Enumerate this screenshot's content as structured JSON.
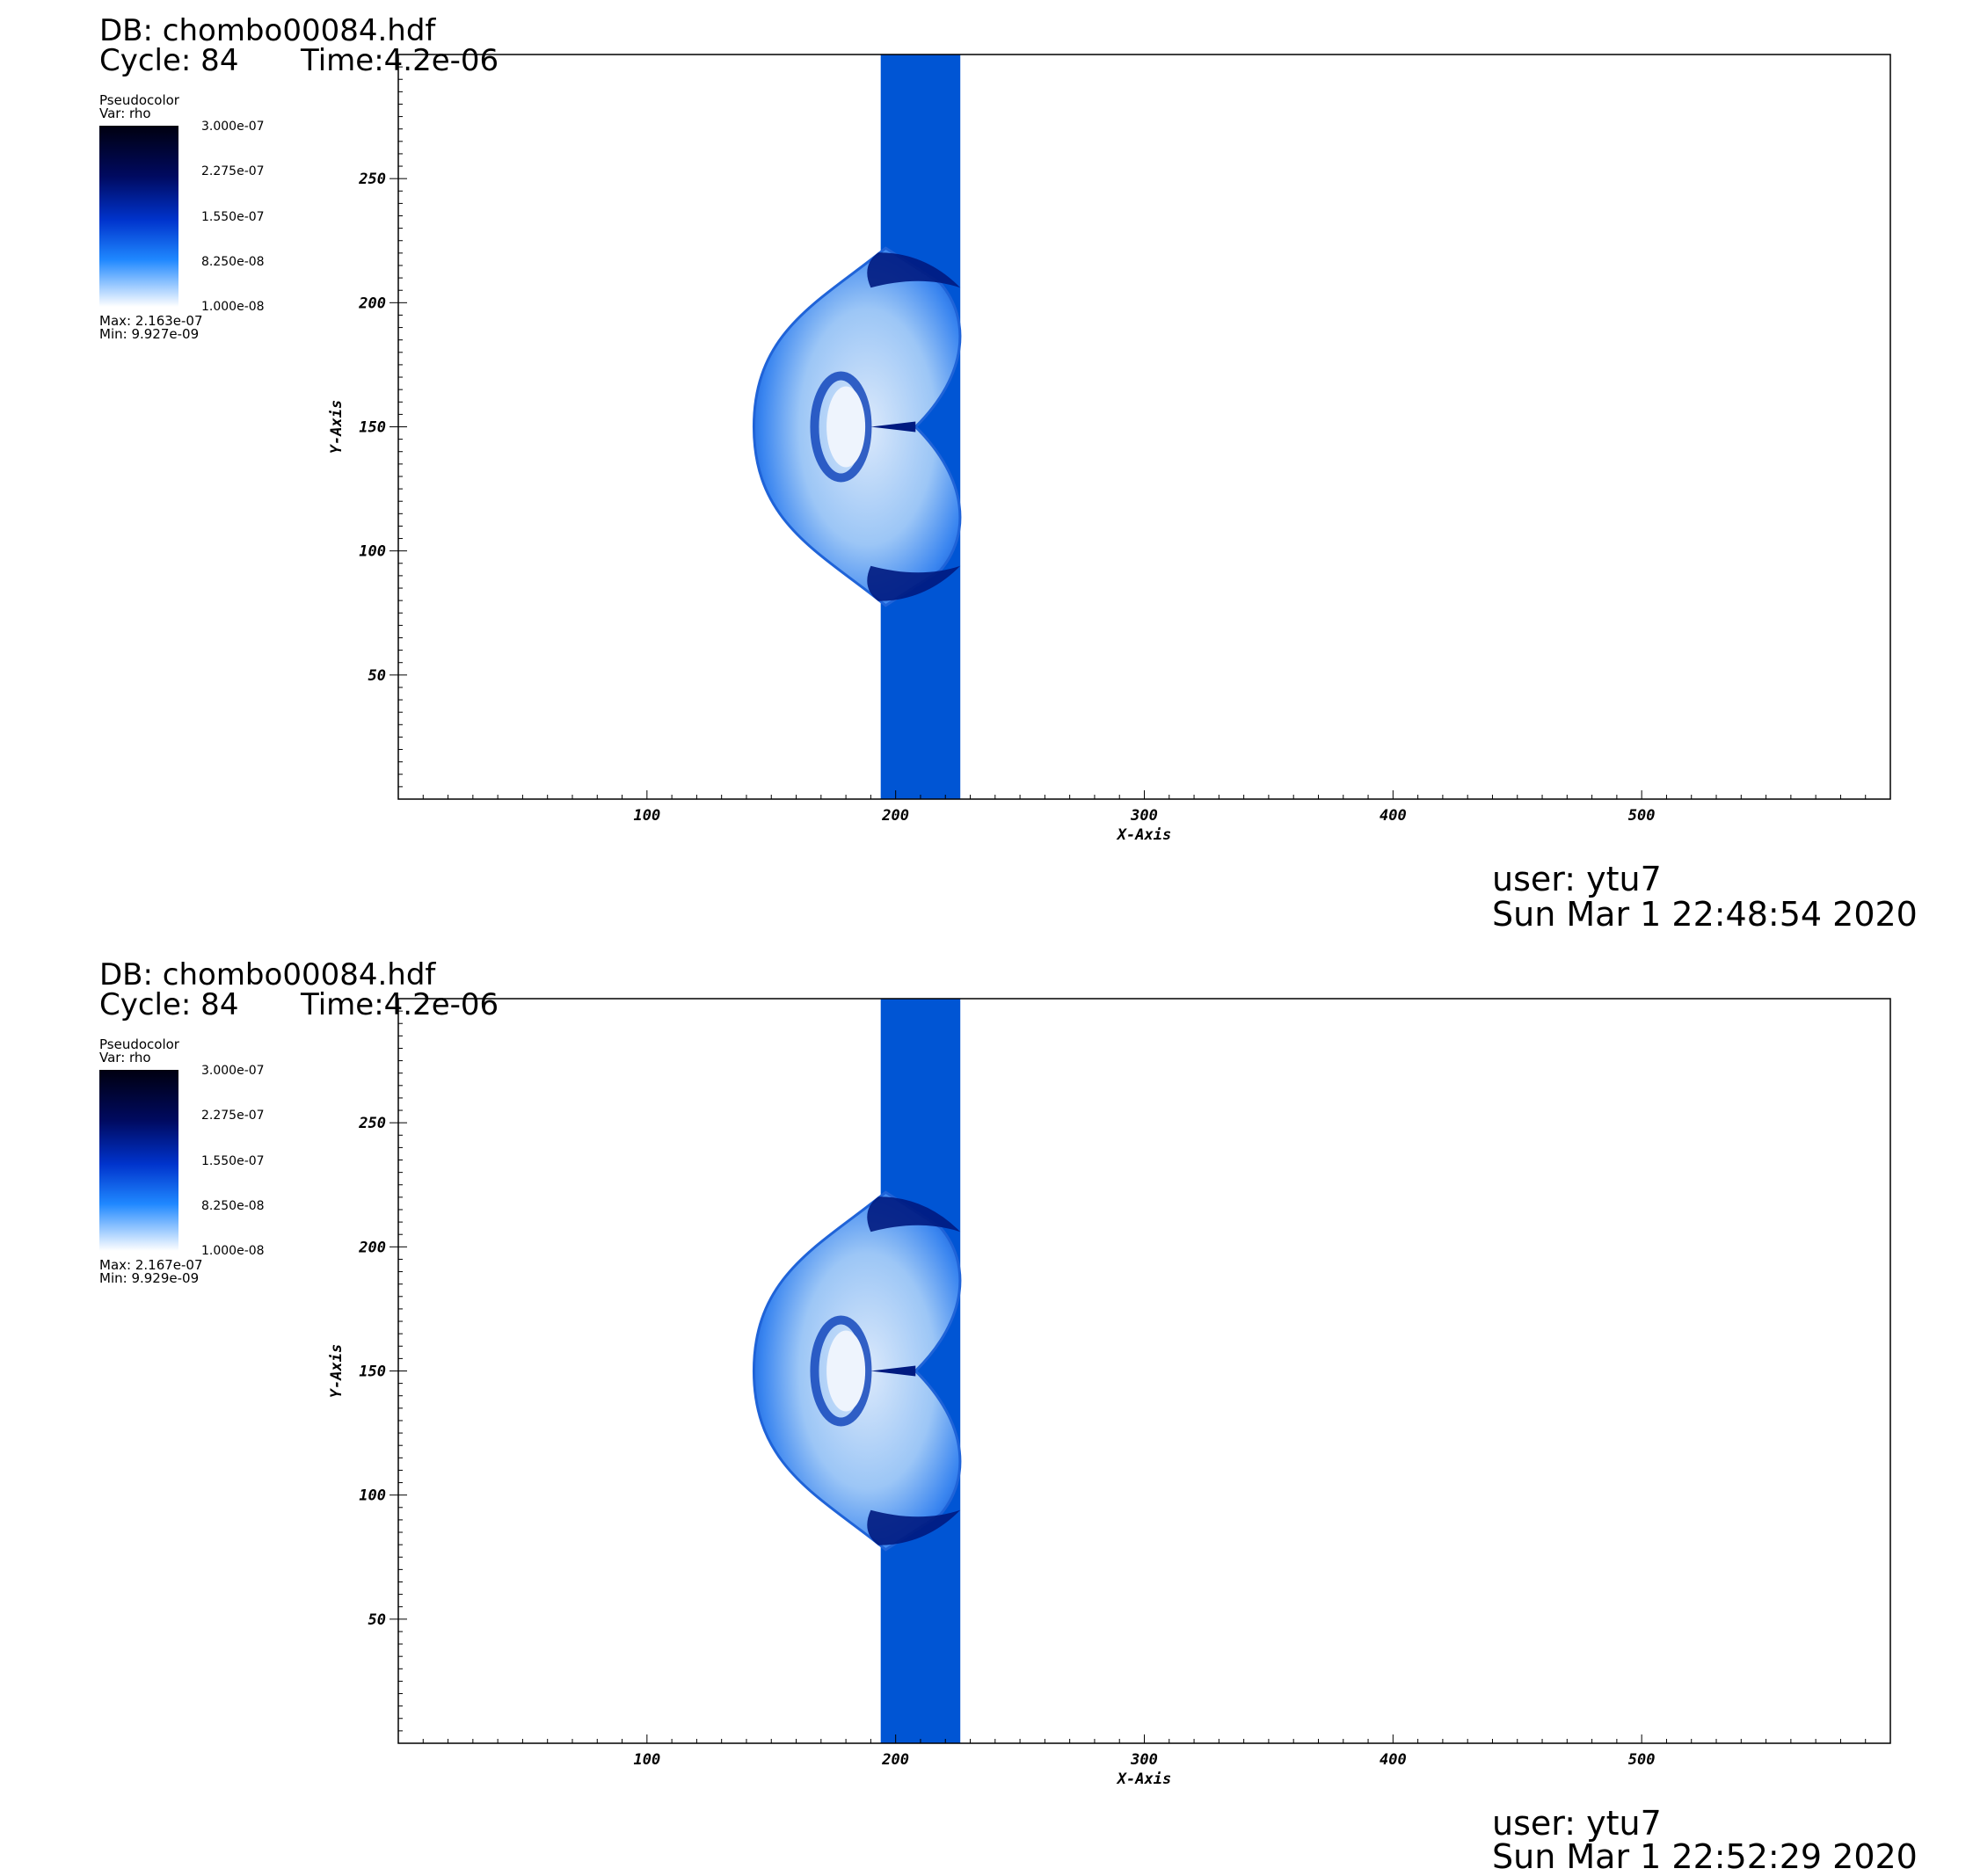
{
  "panels": [
    {
      "db_label": "DB: chombo00084.hdf",
      "cycle_label": "Cycle: 84",
      "time_label": "Time:4.2e-06",
      "legend": {
        "plot_type": "Pseudocolor",
        "var": "Var: rho",
        "ticks": [
          "3.000e-07",
          "2.275e-07",
          "1.550e-07",
          "8.250e-08",
          "1.000e-08"
        ],
        "max": "Max: 2.163e-07",
        "min": "Min: 9.927e-09",
        "colors": [
          "#000010",
          "#000a60",
          "#0033cc",
          "#1f88ff",
          "#ffffff"
        ]
      },
      "footer": {
        "user": "user: ytu7",
        "date": "Sun Mar  1 22:48:54 2020"
      }
    },
    {
      "db_label": "DB: chombo00084.hdf",
      "cycle_label": "Cycle: 84",
      "time_label": "Time:4.2e-06",
      "legend": {
        "plot_type": "Pseudocolor",
        "var": "Var: rho",
        "ticks": [
          "3.000e-07",
          "2.275e-07",
          "1.550e-07",
          "8.250e-08",
          "1.000e-08"
        ],
        "max": "Max: 2.167e-07",
        "min": "Min: 9.929e-09",
        "colors": [
          "#000010",
          "#000a60",
          "#0033cc",
          "#1f88ff",
          "#ffffff"
        ]
      },
      "footer": {
        "user": "user: ytu7",
        "date": "Sun Mar  1 22:52:29 2020"
      }
    }
  ],
  "chart_data": {
    "type": "heatmap",
    "xlabel": "X-Axis",
    "ylabel": "Y-Axis",
    "xlim": [
      0,
      600
    ],
    "ylim": [
      0,
      300
    ],
    "xticks": [
      100,
      200,
      300,
      400,
      500
    ],
    "yticks": [
      50,
      100,
      150,
      200,
      250
    ],
    "colorbar_range": [
      1e-08,
      3e-07
    ],
    "features": {
      "band_x": [
        194,
        226
      ],
      "band_color": "#0055d4",
      "shocked_region_y": [
        78,
        222
      ]
    }
  }
}
